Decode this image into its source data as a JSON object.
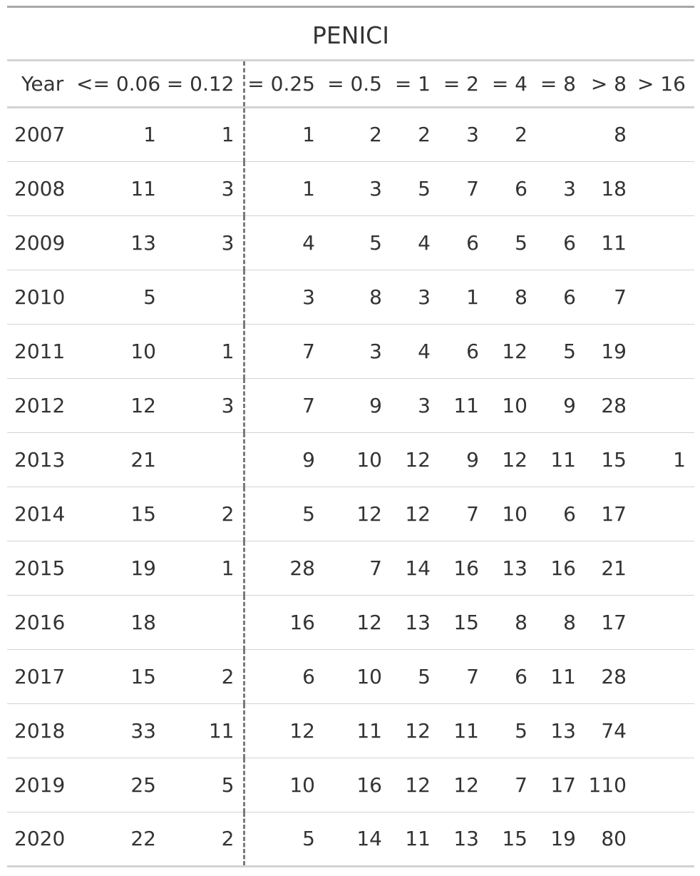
{
  "title": "PENICI",
  "columns": [
    "Year",
    "<= 0.06",
    "= 0.12",
    "= 0.25",
    "= 0.5",
    "= 1",
    "= 2",
    "= 4",
    "= 8",
    "> 8",
    "> 16"
  ],
  "rows": [
    [
      "2007",
      "1",
      "1",
      "1",
      "2",
      "2",
      "3",
      "2",
      "",
      "8",
      ""
    ],
    [
      "2008",
      "11",
      "3",
      "1",
      "3",
      "5",
      "7",
      "6",
      "3",
      "18",
      ""
    ],
    [
      "2009",
      "13",
      "3",
      "4",
      "5",
      "4",
      "6",
      "5",
      "6",
      "11",
      ""
    ],
    [
      "2010",
      "5",
      "",
      "3",
      "8",
      "3",
      "1",
      "8",
      "6",
      "7",
      ""
    ],
    [
      "2011",
      "10",
      "1",
      "7",
      "3",
      "4",
      "6",
      "12",
      "5",
      "19",
      ""
    ],
    [
      "2012",
      "12",
      "3",
      "7",
      "9",
      "3",
      "11",
      "10",
      "9",
      "28",
      ""
    ],
    [
      "2013",
      "21",
      "",
      "9",
      "10",
      "12",
      "9",
      "12",
      "11",
      "15",
      "1"
    ],
    [
      "2014",
      "15",
      "2",
      "5",
      "12",
      "12",
      "7",
      "10",
      "6",
      "17",
      ""
    ],
    [
      "2015",
      "19",
      "1",
      "28",
      "7",
      "14",
      "16",
      "13",
      "16",
      "21",
      ""
    ],
    [
      "2016",
      "18",
      "",
      "16",
      "12",
      "13",
      "15",
      "8",
      "8",
      "17",
      ""
    ],
    [
      "2017",
      "15",
      "2",
      "6",
      "10",
      "5",
      "7",
      "6",
      "11",
      "28",
      ""
    ],
    [
      "2018",
      "33",
      "11",
      "12",
      "11",
      "12",
      "11",
      "5",
      "13",
      "74",
      ""
    ],
    [
      "2019",
      "25",
      "5",
      "10",
      "16",
      "12",
      "12",
      "7",
      "17",
      "110",
      ""
    ],
    [
      "2020",
      "22",
      "2",
      "5",
      "14",
      "11",
      "13",
      "15",
      "19",
      "80",
      ""
    ]
  ],
  "colors": {
    "breakpoint_line": "#7a7a7a",
    "rule": "#d3d3d3",
    "text": "#333333"
  }
}
